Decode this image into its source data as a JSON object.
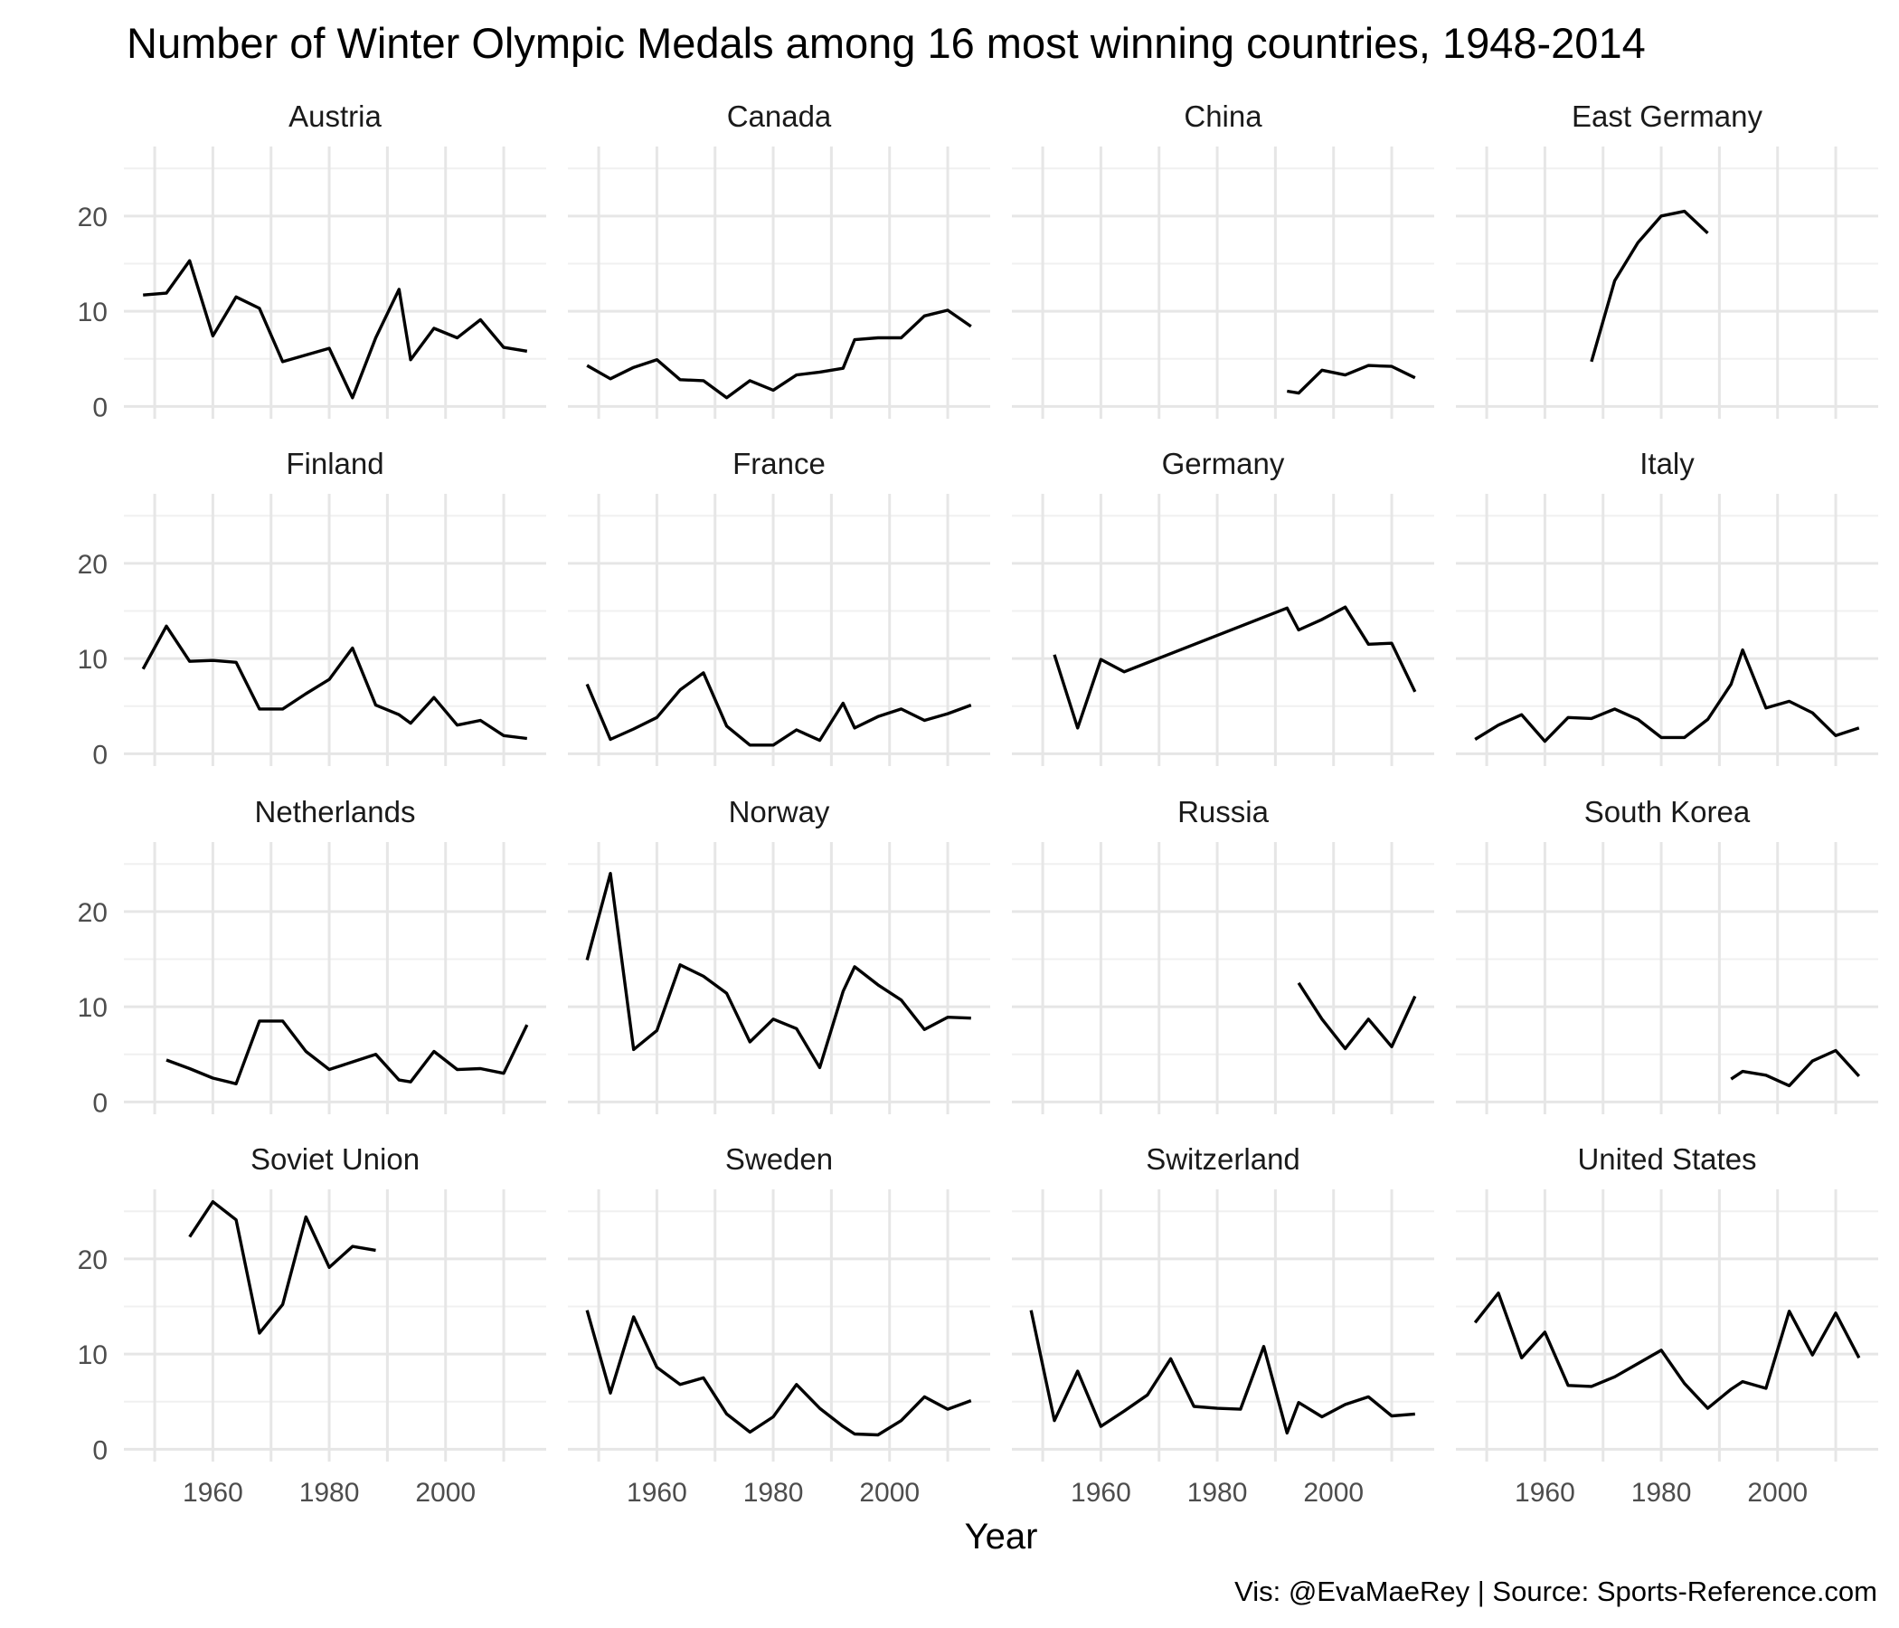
{
  "chart_data": {
    "type": "line",
    "layout": "facet-wrap",
    "title": "Number of Winter Olympic Medals among 16 most winning countries, 1948-2014",
    "xlabel": "Year",
    "ylabel": "",
    "caption": "Vis: @EvaMaeRey | Source: Sports-Reference.com",
    "xlim": [
      1944.7,
      2017.3
    ],
    "ylim": [
      -1.3,
      27.3
    ],
    "x_ticks": [
      1960,
      1980,
      2000
    ],
    "y_ticks": [
      0,
      10,
      20
    ],
    "grid": true,
    "line_color": "#000000",
    "panels": [
      {
        "name": "Austria",
        "x": [
          1948,
          1952,
          1956,
          1960,
          1964,
          1968,
          1972,
          1976,
          1980,
          1984,
          1988,
          1992,
          1994,
          1998,
          2002,
          2006,
          2010,
          2014
        ],
        "y": [
          11.7,
          11.9,
          15.3,
          7.4,
          11.5,
          10.3,
          4.7,
          5.4,
          6.1,
          0.9,
          7.2,
          12.3,
          4.9,
          8.2,
          7.2,
          9.1,
          6.2,
          5.8
        ]
      },
      {
        "name": "Canada",
        "x": [
          1948,
          1952,
          1956,
          1960,
          1964,
          1968,
          1972,
          1976,
          1980,
          1984,
          1988,
          1992,
          1994,
          1998,
          2002,
          2006,
          2010,
          2014
        ],
        "y": [
          4.3,
          2.9,
          4.1,
          4.9,
          2.8,
          2.7,
          0.9,
          2.7,
          1.7,
          3.3,
          3.6,
          4.0,
          7.0,
          7.2,
          7.2,
          9.5,
          10.1,
          8.4
        ]
      },
      {
        "name": "China",
        "x": [
          1992,
          1994,
          1998,
          2002,
          2006,
          2010,
          2014
        ],
        "y": [
          1.6,
          1.4,
          3.8,
          3.3,
          4.3,
          4.2,
          3.0
        ]
      },
      {
        "name": "East Germany",
        "x": [
          1968,
          1972,
          1976,
          1980,
          1984,
          1988
        ],
        "y": [
          4.7,
          13.2,
          17.2,
          20.0,
          20.5,
          18.2
        ]
      },
      {
        "name": "Finland",
        "x": [
          1948,
          1952,
          1956,
          1960,
          1964,
          1968,
          1972,
          1976,
          1980,
          1984,
          1988,
          1992,
          1994,
          1998,
          2002,
          2006,
          2010,
          2014
        ],
        "y": [
          8.9,
          13.4,
          9.7,
          9.8,
          9.6,
          4.7,
          4.7,
          6.3,
          7.8,
          11.1,
          5.1,
          4.1,
          3.2,
          5.9,
          3.0,
          3.5,
          1.9,
          1.6
        ]
      },
      {
        "name": "France",
        "x": [
          1948,
          1952,
          1956,
          1960,
          1964,
          1968,
          1972,
          1976,
          1980,
          1984,
          1988,
          1992,
          1994,
          1998,
          2002,
          2006,
          2010,
          2014
        ],
        "y": [
          7.3,
          1.5,
          2.6,
          3.8,
          6.7,
          8.5,
          2.9,
          0.9,
          0.9,
          2.5,
          1.4,
          5.3,
          2.7,
          3.9,
          4.7,
          3.5,
          4.2,
          5.1
        ]
      },
      {
        "name": "Germany",
        "x": [
          1952,
          1956,
          1960,
          1964,
          1992,
          1994,
          1998,
          2002,
          2006,
          2010,
          2014
        ],
        "y": [
          10.4,
          2.7,
          9.9,
          8.6,
          15.3,
          13.0,
          14.1,
          15.4,
          11.5,
          11.6,
          6.5
        ]
      },
      {
        "name": "Italy",
        "x": [
          1948,
          1952,
          1956,
          1960,
          1964,
          1968,
          1972,
          1976,
          1980,
          1984,
          1988,
          1992,
          1994,
          1998,
          2002,
          2006,
          2010,
          2014
        ],
        "y": [
          1.5,
          3.0,
          4.1,
          1.3,
          3.8,
          3.7,
          4.7,
          3.6,
          1.7,
          1.7,
          3.6,
          7.3,
          10.9,
          4.8,
          5.5,
          4.3,
          1.9,
          2.7
        ]
      },
      {
        "name": "Netherlands",
        "x": [
          1952,
          1956,
          1960,
          1964,
          1968,
          1972,
          1976,
          1980,
          1984,
          1988,
          1992,
          1994,
          1998,
          2002,
          2006,
          2010,
          2014
        ],
        "y": [
          4.4,
          3.5,
          2.5,
          1.9,
          8.5,
          8.5,
          5.3,
          3.4,
          4.2,
          5.0,
          2.3,
          2.1,
          5.3,
          3.4,
          3.5,
          3.0,
          8.1
        ]
      },
      {
        "name": "Norway",
        "x": [
          1948,
          1952,
          1956,
          1960,
          1964,
          1968,
          1972,
          1976,
          1980,
          1984,
          1988,
          1992,
          1994,
          1998,
          2002,
          2006,
          2010,
          2014
        ],
        "y": [
          14.9,
          24.0,
          5.5,
          7.5,
          14.4,
          13.2,
          11.4,
          6.3,
          8.7,
          7.7,
          3.6,
          11.6,
          14.2,
          12.3,
          10.7,
          7.6,
          8.9,
          8.8
        ]
      },
      {
        "name": "Russia",
        "x": [
          1994,
          1998,
          2002,
          2006,
          2010,
          2014
        ],
        "y": [
          12.5,
          8.7,
          5.6,
          8.7,
          5.8,
          11.1
        ]
      },
      {
        "name": "South Korea",
        "x": [
          1992,
          1994,
          1998,
          2002,
          2006,
          2010,
          2014
        ],
        "y": [
          2.4,
          3.2,
          2.8,
          1.7,
          4.3,
          5.4,
          2.7
        ]
      },
      {
        "name": "Soviet Union",
        "x": [
          1956,
          1960,
          1964,
          1968,
          1972,
          1976,
          1980,
          1984,
          1988
        ],
        "y": [
          22.3,
          26.0,
          24.1,
          12.2,
          15.2,
          24.4,
          19.1,
          21.3,
          20.9
        ]
      },
      {
        "name": "Sweden",
        "x": [
          1948,
          1952,
          1956,
          1960,
          1964,
          1968,
          1972,
          1976,
          1980,
          1984,
          1988,
          1992,
          1994,
          1998,
          2002,
          2006,
          2010,
          2014
        ],
        "y": [
          14.6,
          5.9,
          13.9,
          8.6,
          6.8,
          7.5,
          3.7,
          1.8,
          3.4,
          6.8,
          4.3,
          2.4,
          1.6,
          1.5,
          3.0,
          5.5,
          4.2,
          5.1
        ]
      },
      {
        "name": "Switzerland",
        "x": [
          1948,
          1952,
          1956,
          1960,
          1964,
          1968,
          1972,
          1976,
          1980,
          1984,
          1988,
          1992,
          1994,
          1998,
          2002,
          2006,
          2010,
          2014
        ],
        "y": [
          14.6,
          3.0,
          8.2,
          2.4,
          4.0,
          5.7,
          9.5,
          4.5,
          4.3,
          4.2,
          10.8,
          1.7,
          4.9,
          3.4,
          4.7,
          5.5,
          3.5,
          3.7
        ]
      },
      {
        "name": "United States",
        "x": [
          1948,
          1952,
          1956,
          1960,
          1964,
          1968,
          1972,
          1976,
          1980,
          1984,
          1988,
          1992,
          1994,
          1998,
          2002,
          2006,
          2010,
          2014
        ],
        "y": [
          13.3,
          16.4,
          9.6,
          12.3,
          6.7,
          6.6,
          7.6,
          9.0,
          10.4,
          6.9,
          4.3,
          6.3,
          7.1,
          6.4,
          14.5,
          9.9,
          14.3,
          9.6
        ]
      }
    ]
  }
}
